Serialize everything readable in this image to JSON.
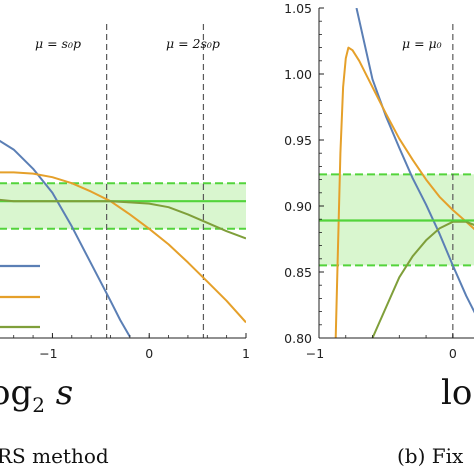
{
  "panels": [
    {
      "xlabel_parts": [
        "og",
        "2",
        " s"
      ],
      "caption": "RS method",
      "annotations": [
        {
          "text": "μ = s₀p",
          "x": -0.44
        },
        {
          "text": "μ = 2s₀p",
          "x": 0.56
        }
      ]
    },
    {
      "xlabel_parts": [
        "lo"
      ],
      "caption": "(b) Fix"
    }
  ],
  "colors": {
    "blue": "#5b7fb5",
    "orange": "#e5a02a",
    "olive": "#7f9f3a",
    "green": "#53d43b",
    "band": "#d9f6cf",
    "dash": "#5a5a5a"
  },
  "chart_data": [
    {
      "type": "line",
      "title": "",
      "xlim": [
        -1.8,
        1.0
      ],
      "ylim": [
        0.775,
        1.05
      ],
      "xticks": [
        -1,
        0,
        1
      ],
      "xtick_labels": [
        "−1",
        "0",
        "1"
      ],
      "vlines": [
        -0.44,
        0.56
      ],
      "band": {
        "center": 0.889,
        "lower": 0.866,
        "upper": 0.904
      },
      "legend_series": [
        "blue",
        "orange",
        "olive"
      ],
      "series": [
        {
          "color": "blue",
          "x": [
            -1.8,
            -1.6,
            -1.4,
            -1.2,
            -1.0,
            -0.8,
            -0.6,
            -0.4,
            -0.3,
            -0.2
          ],
          "y": [
            0.948,
            0.942,
            0.932,
            0.916,
            0.896,
            0.868,
            0.837,
            0.806,
            0.79,
            0.776
          ]
        },
        {
          "color": "orange",
          "x": [
            -1.8,
            -1.4,
            -1.2,
            -1.0,
            -0.8,
            -0.6,
            -0.4,
            -0.2,
            0.0,
            0.2,
            0.4,
            0.6,
            0.8,
            1.0
          ],
          "y": [
            0.913,
            0.913,
            0.912,
            0.909,
            0.904,
            0.897,
            0.889,
            0.878,
            0.866,
            0.853,
            0.838,
            0.822,
            0.806,
            0.788
          ]
        },
        {
          "color": "olive",
          "x": [
            -1.8,
            -1.4,
            -1.0,
            -0.6,
            -0.4,
            -0.2,
            0.0,
            0.2,
            0.4,
            0.6,
            0.8,
            1.0
          ],
          "y": [
            0.892,
            0.889,
            0.889,
            0.889,
            0.889,
            0.888,
            0.887,
            0.884,
            0.878,
            0.871,
            0.864,
            0.858
          ]
        }
      ]
    },
    {
      "type": "line",
      "title": "",
      "xlim": [
        -1.0,
        0.33
      ],
      "ylim": [
        0.8,
        1.05
      ],
      "xticks": [
        -1,
        0
      ],
      "xtick_labels": [
        "−1",
        "0"
      ],
      "yticks": [
        0.8,
        0.85,
        0.9,
        0.95,
        1.0,
        1.05
      ],
      "ytick_labels": [
        "0.80",
        "0.85",
        "0.90",
        "0.95",
        "1.00",
        "1.05"
      ],
      "vlines": [
        0.0
      ],
      "annotation": "μ = μ₀",
      "band": {
        "center": 0.889,
        "lower": 0.855,
        "upper": 0.924
      },
      "series": [
        {
          "color": "blue",
          "x": [
            -0.72,
            -0.6,
            -0.5,
            -0.4,
            -0.3,
            -0.2,
            -0.1,
            0.0,
            0.1,
            0.2,
            0.3
          ],
          "y": [
            1.05,
            0.996,
            0.968,
            0.944,
            0.921,
            0.901,
            0.879,
            0.855,
            0.832,
            0.812,
            0.792
          ]
        },
        {
          "color": "orange",
          "x": [
            -0.875,
            -0.86,
            -0.84,
            -0.82,
            -0.8,
            -0.78,
            -0.75,
            -0.7,
            -0.6,
            -0.5,
            -0.4,
            -0.3,
            -0.2,
            -0.1,
            0.0,
            0.1,
            0.2,
            0.3
          ],
          "y": [
            0.8,
            0.86,
            0.94,
            0.99,
            1.012,
            1.02,
            1.018,
            1.01,
            0.99,
            0.97,
            0.951,
            0.935,
            0.92,
            0.907,
            0.897,
            0.888,
            0.879,
            0.87
          ]
        },
        {
          "color": "olive",
          "x": [
            -0.6,
            -0.5,
            -0.4,
            -0.3,
            -0.2,
            -0.1,
            0.0,
            0.1,
            0.2,
            0.3
          ],
          "y": [
            0.8,
            0.823,
            0.846,
            0.862,
            0.874,
            0.883,
            0.888,
            0.888,
            0.884,
            0.875
          ]
        },
        {
          "color": "green",
          "x": [
            -1.0,
            0.33
          ],
          "y": [
            0.889,
            0.889
          ]
        }
      ]
    }
  ]
}
